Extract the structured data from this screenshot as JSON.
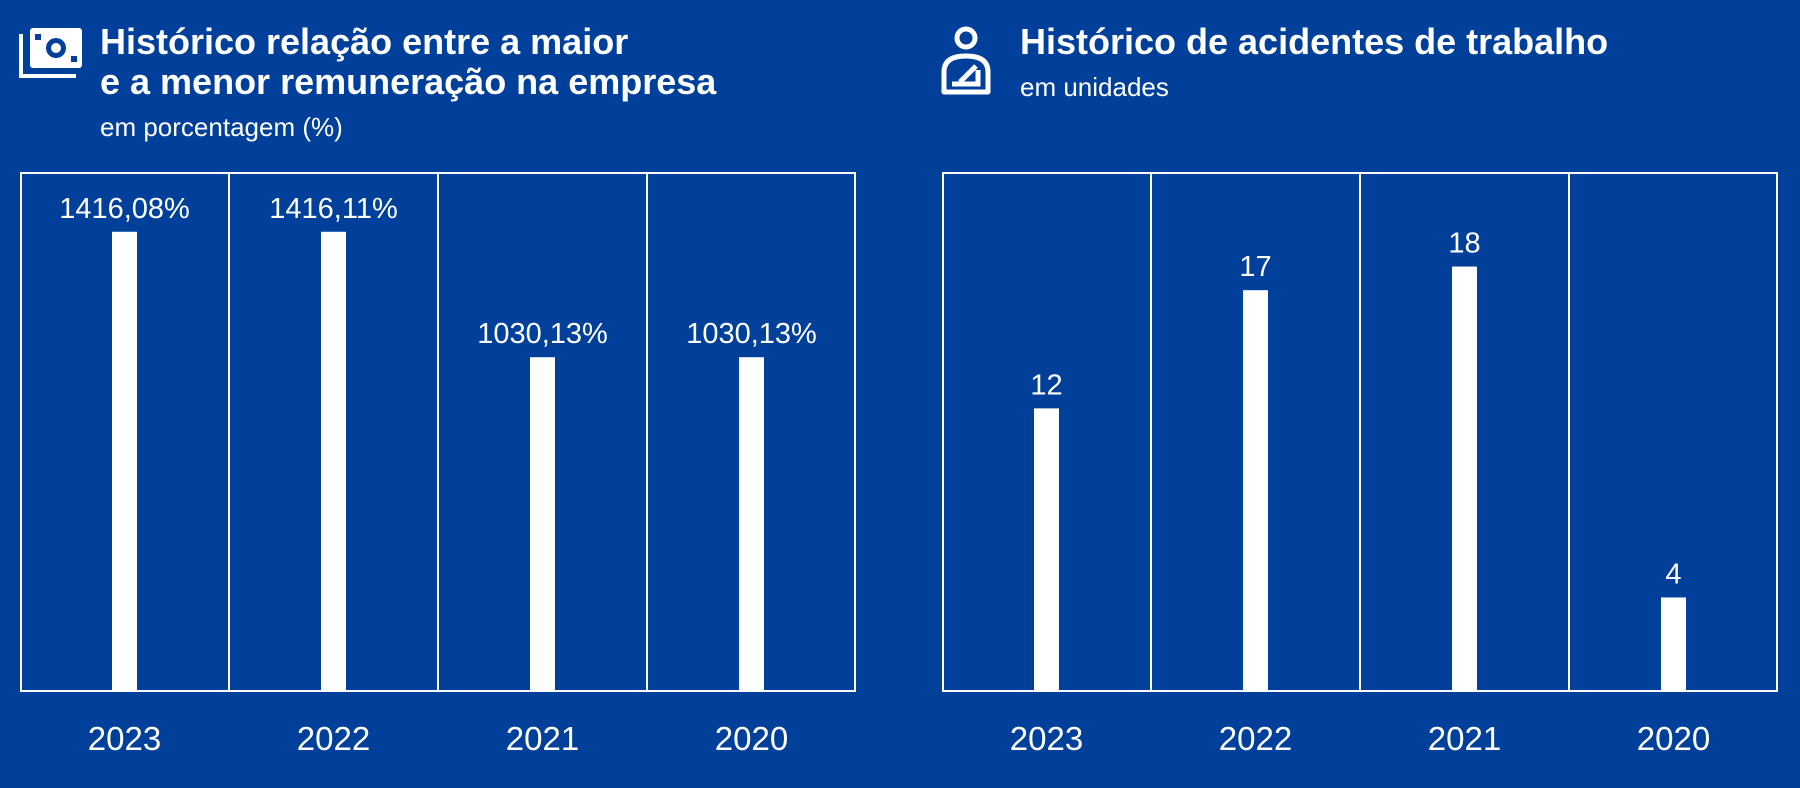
{
  "colors": {
    "background": "#00409b",
    "foreground": "#ffffff"
  },
  "left_panel": {
    "icon": "money-bill-icon",
    "title_line1": "Histórico relação entre a maior",
    "title_line2": "e a menor remuneração na empresa",
    "subtitle": "em porcentagem (%)"
  },
  "right_panel": {
    "icon": "injured-person-icon",
    "title": "Histórico de acidentes de trabalho",
    "subtitle": "em unidades"
  },
  "chart_data": [
    {
      "type": "bar",
      "title": "Histórico relação entre a maior e a menor remuneração na empresa",
      "subtitle": "em porcentagem (%)",
      "categories": [
        "2023",
        "2022",
        "2021",
        "2020"
      ],
      "values": [
        1416.08,
        1416.11,
        1030.13,
        1030.13
      ],
      "value_labels": [
        "1416,08%",
        "1416,11%",
        "1030,13%",
        "1030,13%"
      ],
      "ylim": [
        0,
        1600
      ],
      "grid": false
    },
    {
      "type": "bar",
      "title": "Histórico de acidentes de trabalho",
      "subtitle": "em unidades",
      "categories": [
        "2023",
        "2022",
        "2021",
        "2020"
      ],
      "values": [
        12,
        17,
        18,
        4
      ],
      "value_labels": [
        "12",
        "17",
        "18",
        "4"
      ],
      "ylim": [
        0,
        22
      ],
      "grid": false
    }
  ]
}
